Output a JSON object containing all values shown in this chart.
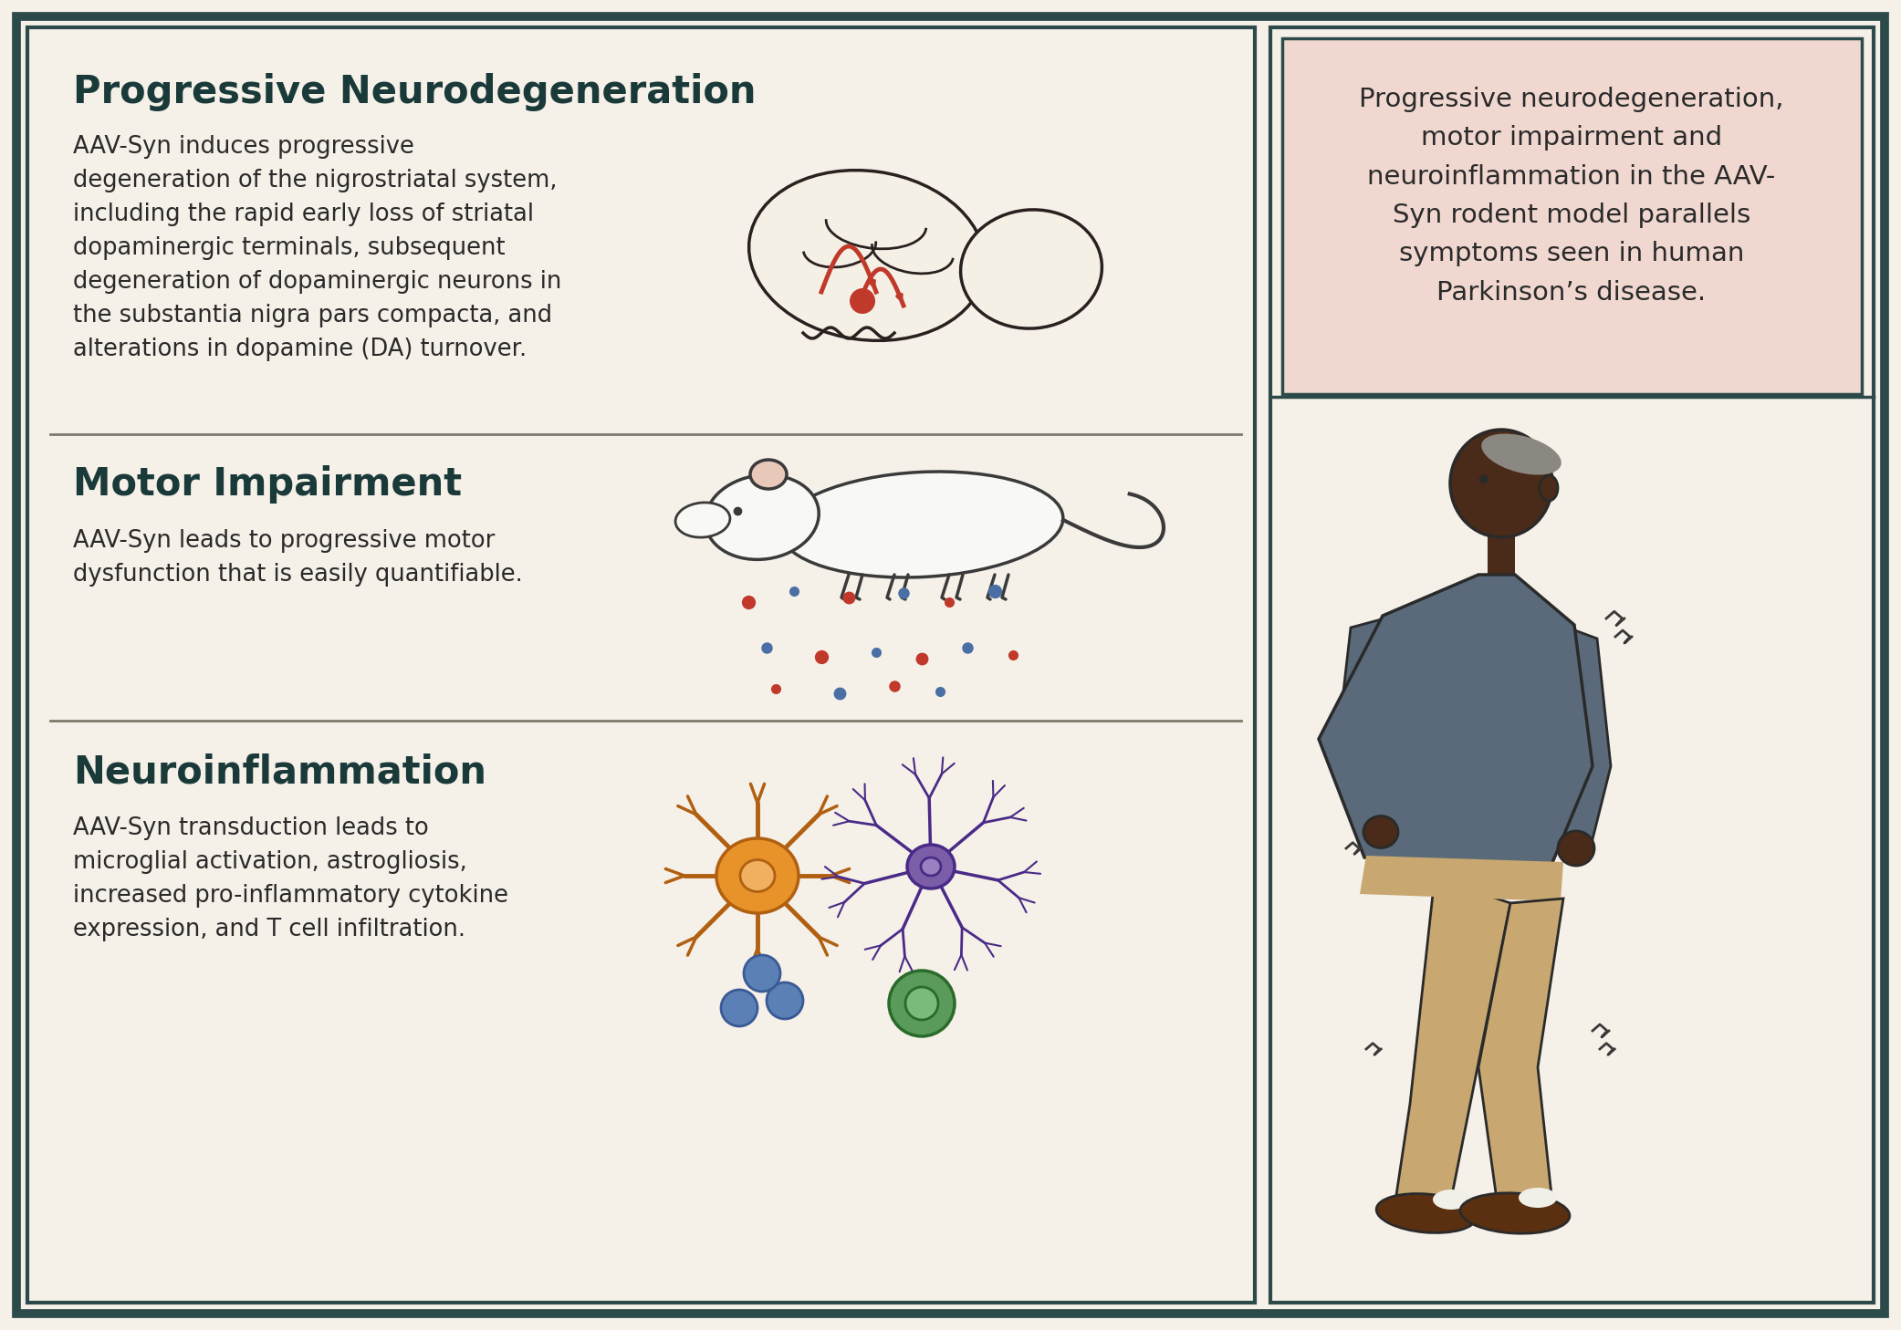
{
  "bg_color": "#f5f0e8",
  "outer_border_color": "#2d4a4a",
  "panel_bg": "#f5f0e8",
  "top_right_box_bg": "#f0d8d0",
  "title_color": "#1a3a3a",
  "text_color": "#2a2a2a",
  "heading1": "Progressive Neurodegeneration",
  "body1": "AAV-Syn induces progressive\ndegeneration of the nigrostriatal system,\nincluding the rapid early loss of striatal\ndopaminergic terminals, subsequent\ndegeneration of dopaminergic neurons in\nthe substantia nigra pars compacta, and\nalterations in dopamine (DA) turnover.",
  "heading2": "Motor Impairment",
  "body2": "AAV-Syn leads to progressive motor\ndysfunction that is easily quantifiable.",
  "heading3": "Neuroinflammation",
  "body3": "AAV-Syn transduction leads to\nmicroglial activation, astrogliosis,\nincreased pro-inflammatory cytokine\nexpression, and T cell infiltration.",
  "right_text": "Progressive neurodegeneration,\nmotor impairment and\nneuroinflammation in the AAV-\nSyn rodent model parallels\nsymptoms seen in human\nParkinson’s disease.",
  "divider_color": "#7a7a6a",
  "neuron_orange": "#e8922a",
  "neuron_orange_edge": "#b06010",
  "neuron_orange_nucleus": "#f0b060",
  "neuron_purple": "#7b5ea7",
  "neuron_purple_edge": "#4a2a87",
  "neuron_purple_nucleus": "#9a80c0",
  "dot_blue": "#5a80b5",
  "dot_blue_edge": "#3a5a95",
  "green_cell": "#5a9a5a",
  "green_cell_edge": "#2a6a2a",
  "green_inner": "#7aba7a",
  "brain_color": "#c0392b",
  "brain_line": "#2a2020",
  "mouse_fill": "#f8f8f5",
  "mouse_line": "#3a3a3a",
  "mouse_ear_fill": "#e8c8b8",
  "human_skin": "#4a2a18",
  "human_hair": "#8a8880",
  "human_sweater": "#5a6a7a",
  "human_pants": "#c8a870",
  "human_shoe": "#5a3010",
  "human_sock": "#f0efe8",
  "tremor_color": "#3a3a3a"
}
